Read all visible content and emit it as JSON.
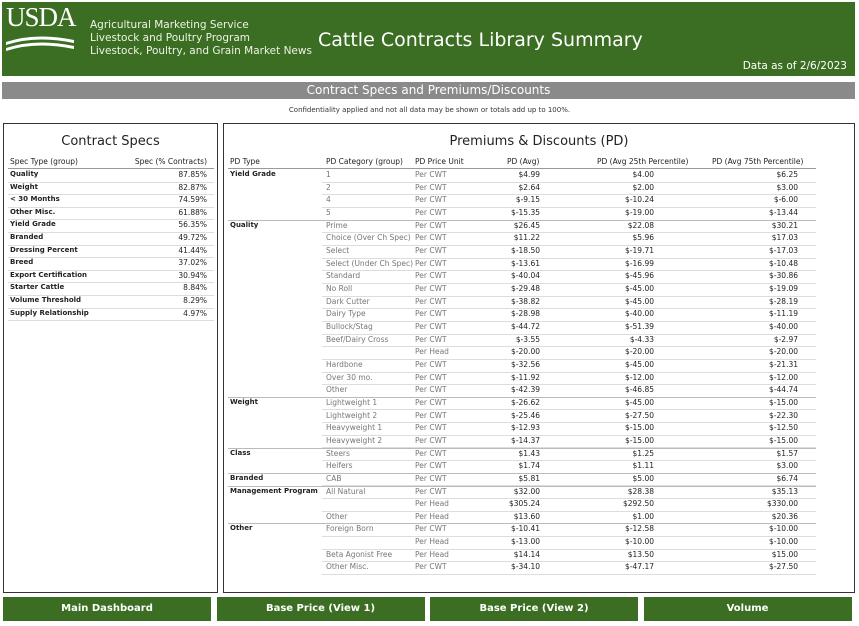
{
  "header": {
    "logo": "USDA",
    "agency": [
      "Agricultural Marketing Service",
      "Livestock and Poultry Program",
      "Livestock, Poultry, and Grain Market News"
    ],
    "title": "Cattle Contracts Library Summary",
    "data_as_of": "Data as of 2/6/2023"
  },
  "section_title": "Contract Specs and Premiums/Discounts",
  "note": "Confidentiality applied and not all data may be shown or totals add up to 100%.",
  "contract_specs": {
    "title": "Contract Specs",
    "headers": [
      "Spec Type (group)",
      "Spec (% Contracts)"
    ],
    "rows": [
      [
        "Quality",
        "87.85%"
      ],
      [
        "Weight",
        "82.87%"
      ],
      [
        "< 30 Months",
        "74.59%"
      ],
      [
        "Other Misc.",
        "61.88%"
      ],
      [
        "Yield Grade",
        "56.35%"
      ],
      [
        "Branded",
        "49.72%"
      ],
      [
        "Dressing Percent",
        "41.44%"
      ],
      [
        "Breed",
        "37.02%"
      ],
      [
        "Export Certification",
        "30.94%"
      ],
      [
        "Starter Cattle",
        "8.84%"
      ],
      [
        "Volume Threshold",
        "8.29%"
      ],
      [
        "Supply Relationship",
        "4.97%"
      ]
    ]
  },
  "premiums_discounts": {
    "title": "Premiums & Discounts (PD)",
    "headers": [
      "PD Type",
      "PD Category (group)",
      "PD Price Unit",
      "PD (Avg)",
      "PD (Avg 25th Percentile)",
      "PD (Avg 75th Percentile)"
    ],
    "groups": [
      {
        "type": "Yield Grade",
        "rows": [
          [
            "1",
            "Per CWT",
            "$4.99",
            "$4.00",
            "$6.25"
          ],
          [
            "2",
            "Per CWT",
            "$2.64",
            "$2.00",
            "$3.00"
          ],
          [
            "4",
            "Per CWT",
            "$-9.15",
            "$-10.24",
            "$-6.00"
          ],
          [
            "5",
            "Per CWT",
            "$-15.35",
            "$-19.00",
            "$-13.44"
          ]
        ]
      },
      {
        "type": "Quality",
        "rows": [
          [
            "Prime",
            "Per CWT",
            "$26.45",
            "$22.08",
            "$30.21"
          ],
          [
            "Choice (Over Ch Spec)",
            "Per CWT",
            "$11.22",
            "$5.96",
            "$17.03"
          ],
          [
            "Select",
            "Per CWT",
            "$-18.50",
            "$-19.71",
            "$-17.03"
          ],
          [
            "Select (Under Ch Spec)",
            "Per CWT",
            "$-13.61",
            "$-16.99",
            "$-10.48"
          ],
          [
            "Standard",
            "Per CWT",
            "$-40.04",
            "$-45.96",
            "$-30.86"
          ],
          [
            "No Roll",
            "Per CWT",
            "$-29.48",
            "$-45.00",
            "$-19.09"
          ],
          [
            "Dark Cutter",
            "Per CWT",
            "$-38.82",
            "$-45.00",
            "$-28.19"
          ],
          [
            "Dairy Type",
            "Per CWT",
            "$-28.98",
            "$-40.00",
            "$-11.19"
          ],
          [
            "Bullock/Stag",
            "Per CWT",
            "$-44.72",
            "$-51.39",
            "$-40.00"
          ],
          [
            "Beef/Dairy Cross",
            "Per CWT",
            "$-3.55",
            "$-4.33",
            "$-2.97"
          ],
          [
            null,
            "Per Head",
            "$-20.00",
            "$-20.00",
            "$-20.00"
          ],
          [
            "Hardbone",
            "Per CWT",
            "$-32.56",
            "$-45.00",
            "$-21.31"
          ],
          [
            "Over 30 mo.",
            "Per CWT",
            "$-11.92",
            "$-12.00",
            "$-12.00"
          ],
          [
            "Other",
            "Per CWT",
            "$-42.39",
            "$-46.85",
            "$-44.74"
          ]
        ]
      },
      {
        "type": "Weight",
        "rows": [
          [
            "Lightweight 1",
            "Per CWT",
            "$-26.62",
            "$-45.00",
            "$-15.00"
          ],
          [
            "Lightweight 2",
            "Per CWT",
            "$-25.46",
            "$-27.50",
            "$-22.30"
          ],
          [
            "Heavyweight 1",
            "Per CWT",
            "$-12.93",
            "$-15.00",
            "$-12.50"
          ],
          [
            "Heavyweight 2",
            "Per CWT",
            "$-14.37",
            "$-15.00",
            "$-15.00"
          ]
        ]
      },
      {
        "type": "Class",
        "rows": [
          [
            "Steers",
            "Per CWT",
            "$1.43",
            "$1.25",
            "$1.57"
          ],
          [
            "Heifers",
            "Per CWT",
            "$1.74",
            "$1.11",
            "$3.00"
          ]
        ]
      },
      {
        "type": "Branded",
        "rows": [
          [
            "CAB",
            "Per CWT",
            "$5.81",
            "$5.00",
            "$6.74"
          ]
        ]
      },
      {
        "type": "Management Program",
        "rows": [
          [
            "All Natural",
            "Per CWT",
            "$32.00",
            "$28.38",
            "$35.13"
          ],
          [
            null,
            "Per Head",
            "$305.24",
            "$292.50",
            "$330.00"
          ],
          [
            "Other",
            "Per Head",
            "$13.60",
            "$1.00",
            "$20.36"
          ]
        ]
      },
      {
        "type": "Other",
        "rows": [
          [
            "Foreign Born",
            "Per CWT",
            "$-10.41",
            "$-12.58",
            "$-10.00"
          ],
          [
            null,
            "Per Head",
            "$-13.00",
            "$-10.00",
            "$-10.00"
          ],
          [
            "Beta Agonist Free",
            "Per Head",
            "$14.14",
            "$13.50",
            "$15.00"
          ],
          [
            "Other Misc.",
            "Per CWT",
            "$-34.10",
            "$-47.17",
            "$-27.50"
          ]
        ]
      }
    ]
  },
  "navigation": [
    "Main Dashboard",
    "Base Price (View 1)",
    "Base Price (View 2)",
    "Volume"
  ]
}
